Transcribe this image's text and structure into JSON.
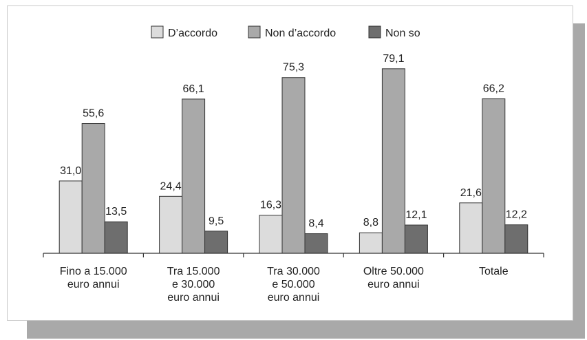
{
  "chart_data": {
    "type": "bar",
    "title": "",
    "xlabel": "",
    "ylabel": "",
    "ylim": [
      0,
      84
    ],
    "grid": false,
    "legend_position": "top-center",
    "categories": [
      [
        "Fino a 15.000",
        "euro annui"
      ],
      [
        "Tra 15.000",
        "e 30.000",
        "euro annui"
      ],
      [
        "Tra 30.000",
        "e 50.000",
        "euro annui"
      ],
      [
        "Oltre 50.000",
        "euro annui"
      ],
      [
        "Totale"
      ]
    ],
    "series": [
      {
        "name": "D’accordo",
        "color": "#dcdcdc",
        "values": [
          31.0,
          24.4,
          16.3,
          8.8,
          21.6
        ],
        "labels": [
          "31,0",
          "24,4",
          "16,3",
          "8,8",
          "21,6"
        ]
      },
      {
        "name": "Non d’accordo",
        "color": "#a9a9a9",
        "values": [
          55.6,
          66.1,
          75.3,
          79.1,
          66.2
        ],
        "labels": [
          "55,6",
          "66,1",
          "75,3",
          "79,1",
          "66,2"
        ]
      },
      {
        "name": "Non so",
        "color": "#6e6e6e",
        "values": [
          13.5,
          9.5,
          8.4,
          12.1,
          12.2
        ],
        "labels": [
          "13,5",
          "9,5",
          "8,4",
          "12,1",
          "12,2"
        ]
      }
    ]
  }
}
